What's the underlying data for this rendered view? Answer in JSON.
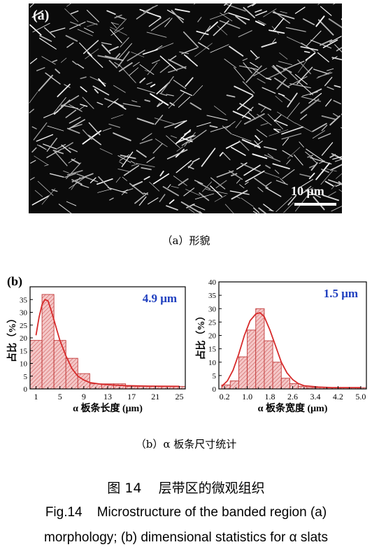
{
  "panel_a": {
    "label": "(a)",
    "scale_bar": "10 μm",
    "caption": "（a）形貌"
  },
  "panel_b": {
    "label": "(b)",
    "caption": "（b）α 板条尺寸统计"
  },
  "figure": {
    "title_cn": "图 14    层带区的微观组织",
    "title_en_line1": "Fig.14    Microstructure of the banded region (a)",
    "title_en_line2": "morphology; (b) dimensional statistics for α slats"
  },
  "colors": {
    "bar_fill": "#f4c7c7",
    "bar_edge": "#c23a3a",
    "fit_line": "#d72b2b",
    "annotation": "#1f3fbf"
  },
  "chart_data": [
    {
      "type": "bar",
      "ylabel": "占比（%）",
      "xlabel": "α 板条长度 (μm)",
      "annotation": "4.9 μm",
      "xlim": [
        0,
        26
      ],
      "ylim": [
        0,
        40
      ],
      "bin_width": 2,
      "bins": [
        0,
        2,
        4,
        6,
        8,
        10,
        12,
        14,
        16,
        18,
        20,
        22,
        24
      ],
      "values": [
        19,
        37,
        19,
        12,
        6,
        2,
        2,
        2,
        1,
        1,
        1,
        1,
        1
      ],
      "xticks": [
        "1",
        "5",
        "9",
        "13",
        "17",
        "21",
        "25"
      ],
      "xtick_values": [
        1,
        5,
        9,
        13,
        17,
        21,
        25
      ],
      "xticks_minor": [
        3,
        7,
        11,
        15,
        19,
        23
      ],
      "yticks": [
        "0",
        "5",
        "10",
        "15",
        "20",
        "25",
        "30",
        "35"
      ],
      "ytick_values": [
        0,
        5,
        10,
        15,
        20,
        25,
        30,
        35
      ],
      "fit": {
        "x": [
          1,
          1.5,
          2,
          2.5,
          3,
          3.5,
          4,
          4.5,
          5,
          6,
          7,
          8,
          9,
          10,
          12,
          14,
          16,
          18,
          20,
          22,
          25
        ],
        "y": [
          21,
          28,
          33,
          35,
          34.5,
          31,
          27,
          23,
          19,
          13,
          8,
          5,
          3.5,
          2.5,
          1.8,
          1.5,
          1.3,
          1.2,
          1.1,
          1.05,
          1
        ]
      }
    },
    {
      "type": "bar",
      "ylabel": "占比（%）",
      "xlabel": "α 板条宽度 (μm)",
      "annotation": "1.5 μm",
      "xlim": [
        0,
        5.2
      ],
      "ylim": [
        0,
        40
      ],
      "bin_width": 0.3,
      "bins": [
        0.1,
        0.4,
        0.7,
        1.0,
        1.3,
        1.6,
        1.9,
        2.2,
        2.5,
        2.8,
        3.1,
        3.4,
        3.7,
        4.0,
        4.3,
        4.6,
        4.9
      ],
      "values": [
        1.5,
        3,
        12,
        22,
        30,
        18,
        10,
        4,
        2,
        1,
        0.5,
        0.5,
        0.5,
        0.5,
        0.5,
        0.5,
        0.5
      ],
      "xticks": [
        "0.2",
        "1.0",
        "1.8",
        "2.6",
        "3.4",
        "4.2",
        "5.0"
      ],
      "xtick_values": [
        0.2,
        1.0,
        1.8,
        2.6,
        3.4,
        4.2,
        5.0
      ],
      "xticks_minor": [
        0.6,
        1.4,
        2.2,
        3.0,
        3.8,
        4.6
      ],
      "yticks": [
        "0",
        "5",
        "10",
        "15",
        "20",
        "25",
        "30",
        "35",
        "40"
      ],
      "ytick_values": [
        0,
        5,
        10,
        15,
        20,
        25,
        30,
        35,
        40
      ],
      "fit": {
        "x": [
          0.1,
          0.3,
          0.5,
          0.7,
          0.9,
          1.1,
          1.3,
          1.45,
          1.6,
          1.8,
          2.0,
          2.2,
          2.4,
          2.6,
          2.8,
          3.0,
          3.5,
          4.0,
          4.5,
          5.0
        ],
        "y": [
          1,
          3,
          7,
          13,
          20,
          25.5,
          28,
          28.5,
          27,
          22,
          16,
          10,
          6,
          3.5,
          2,
          1.2,
          0.7,
          0.5,
          0.5,
          0.5
        ]
      }
    }
  ]
}
